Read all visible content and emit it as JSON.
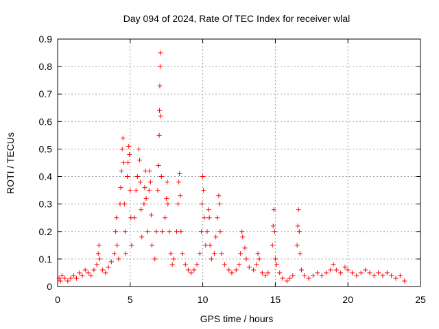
{
  "chart_data": {
    "type": "scatter",
    "title": "Day 094 of 2024, Rate Of TEC Index for receiver wlal",
    "xlabel": "GPS time / hours",
    "ylabel": "ROTI / TECUs",
    "xlim": [
      0,
      25
    ],
    "ylim": [
      0,
      0.9
    ],
    "xticks": [
      0,
      5,
      10,
      15,
      20,
      25
    ],
    "yticks": [
      0,
      0.1,
      0.2,
      0.3,
      0.4,
      0.5,
      0.6,
      0.7,
      0.8,
      0.9
    ],
    "xtick_labels": [
      "0",
      "5",
      "10",
      "15",
      "20",
      "25"
    ],
    "ytick_labels": [
      "0",
      "0.1",
      "0.2",
      "0.3",
      "0.4",
      "0.5",
      "0.6",
      "0.7",
      "0.8",
      "0.9"
    ],
    "grid": true,
    "marker": "+",
    "color": "#ff0000",
    "series": [
      {
        "name": "ROTI",
        "points": [
          [
            0.1,
            0.03
          ],
          [
            0.2,
            0.02
          ],
          [
            0.3,
            0.04
          ],
          [
            0.5,
            0.03
          ],
          [
            0.7,
            0.02
          ],
          [
            0.9,
            0.03
          ],
          [
            1.1,
            0.04
          ],
          [
            1.3,
            0.03
          ],
          [
            1.5,
            0.05
          ],
          [
            1.7,
            0.04
          ],
          [
            1.9,
            0.06
          ],
          [
            2.1,
            0.05
          ],
          [
            2.3,
            0.04
          ],
          [
            2.5,
            0.06
          ],
          [
            2.7,
            0.08
          ],
          [
            2.8,
            0.12
          ],
          [
            2.85,
            0.15
          ],
          [
            2.9,
            0.1
          ],
          [
            3.1,
            0.06
          ],
          [
            3.3,
            0.05
          ],
          [
            3.5,
            0.07
          ],
          [
            3.7,
            0.09
          ],
          [
            3.9,
            0.12
          ],
          [
            4.0,
            0.2
          ],
          [
            4.05,
            0.25
          ],
          [
            4.1,
            0.15
          ],
          [
            4.2,
            0.1
          ],
          [
            4.3,
            0.3
          ],
          [
            4.35,
            0.36
          ],
          [
            4.4,
            0.42
          ],
          [
            4.45,
            0.5
          ],
          [
            4.5,
            0.54
          ],
          [
            4.55,
            0.45
          ],
          [
            4.6,
            0.3
          ],
          [
            4.65,
            0.2
          ],
          [
            4.7,
            0.12
          ],
          [
            4.8,
            0.4
          ],
          [
            4.85,
            0.45
          ],
          [
            4.9,
            0.51
          ],
          [
            4.95,
            0.48
          ],
          [
            5.0,
            0.35
          ],
          [
            5.05,
            0.25
          ],
          [
            5.1,
            0.15
          ],
          [
            5.3,
            0.25
          ],
          [
            5.4,
            0.35
          ],
          [
            5.5,
            0.4
          ],
          [
            5.6,
            0.5
          ],
          [
            5.65,
            0.46
          ],
          [
            5.7,
            0.38
          ],
          [
            5.75,
            0.28
          ],
          [
            5.8,
            0.18
          ],
          [
            5.95,
            0.3
          ],
          [
            6.0,
            0.36
          ],
          [
            6.05,
            0.42
          ],
          [
            6.1,
            0.32
          ],
          [
            6.2,
            0.2
          ],
          [
            6.3,
            0.35
          ],
          [
            6.35,
            0.42
          ],
          [
            6.4,
            0.38
          ],
          [
            6.45,
            0.26
          ],
          [
            6.5,
            0.15
          ],
          [
            6.7,
            0.1
          ],
          [
            6.8,
            0.2
          ],
          [
            6.9,
            0.35
          ],
          [
            6.95,
            0.44
          ],
          [
            7.0,
            0.55
          ],
          [
            7.02,
            0.64
          ],
          [
            7.04,
            0.73
          ],
          [
            7.06,
            0.8
          ],
          [
            7.08,
            0.85
          ],
          [
            7.1,
            0.62
          ],
          [
            7.15,
            0.4
          ],
          [
            7.2,
            0.2
          ],
          [
            7.4,
            0.25
          ],
          [
            7.5,
            0.32
          ],
          [
            7.55,
            0.38
          ],
          [
            7.6,
            0.3
          ],
          [
            7.7,
            0.2
          ],
          [
            7.8,
            0.12
          ],
          [
            7.9,
            0.08
          ],
          [
            8.0,
            0.1
          ],
          [
            8.2,
            0.2
          ],
          [
            8.3,
            0.3
          ],
          [
            8.35,
            0.38
          ],
          [
            8.4,
            0.41
          ],
          [
            8.45,
            0.33
          ],
          [
            8.5,
            0.2
          ],
          [
            8.6,
            0.12
          ],
          [
            8.8,
            0.08
          ],
          [
            9.0,
            0.06
          ],
          [
            9.2,
            0.05
          ],
          [
            9.4,
            0.06
          ],
          [
            9.6,
            0.08
          ],
          [
            9.8,
            0.12
          ],
          [
            9.9,
            0.2
          ],
          [
            9.95,
            0.3
          ],
          [
            10.0,
            0.4
          ],
          [
            10.05,
            0.35
          ],
          [
            10.1,
            0.25
          ],
          [
            10.2,
            0.15
          ],
          [
            10.3,
            0.2
          ],
          [
            10.4,
            0.28
          ],
          [
            10.45,
            0.25
          ],
          [
            10.5,
            0.15
          ],
          [
            10.6,
            0.1
          ],
          [
            10.8,
            0.12
          ],
          [
            10.9,
            0.18
          ],
          [
            11.0,
            0.25
          ],
          [
            11.1,
            0.33
          ],
          [
            11.15,
            0.3
          ],
          [
            11.2,
            0.2
          ],
          [
            11.3,
            0.12
          ],
          [
            11.5,
            0.08
          ],
          [
            11.8,
            0.06
          ],
          [
            12.0,
            0.05
          ],
          [
            12.3,
            0.06
          ],
          [
            12.5,
            0.08
          ],
          [
            12.6,
            0.12
          ],
          [
            12.7,
            0.2
          ],
          [
            12.75,
            0.18
          ],
          [
            12.9,
            0.14
          ],
          [
            13.0,
            0.1
          ],
          [
            13.2,
            0.07
          ],
          [
            13.5,
            0.06
          ],
          [
            13.7,
            0.08
          ],
          [
            13.8,
            0.12
          ],
          [
            13.9,
            0.1
          ],
          [
            14.1,
            0.05
          ],
          [
            14.3,
            0.04
          ],
          [
            14.5,
            0.05
          ],
          [
            14.8,
            0.15
          ],
          [
            14.85,
            0.22
          ],
          [
            14.9,
            0.28
          ],
          [
            14.95,
            0.2
          ],
          [
            15.0,
            0.1
          ],
          [
            15.1,
            0.08
          ],
          [
            15.3,
            0.05
          ],
          [
            15.5,
            0.03
          ],
          [
            15.8,
            0.02
          ],
          [
            16.0,
            0.03
          ],
          [
            16.2,
            0.04
          ],
          [
            16.5,
            0.15
          ],
          [
            16.55,
            0.22
          ],
          [
            16.6,
            0.28
          ],
          [
            16.65,
            0.2
          ],
          [
            16.7,
            0.12
          ],
          [
            16.8,
            0.06
          ],
          [
            17.0,
            0.04
          ],
          [
            17.3,
            0.03
          ],
          [
            17.6,
            0.04
          ],
          [
            17.9,
            0.05
          ],
          [
            18.2,
            0.04
          ],
          [
            18.5,
            0.05
          ],
          [
            18.8,
            0.06
          ],
          [
            19.0,
            0.08
          ],
          [
            19.2,
            0.06
          ],
          [
            19.5,
            0.05
          ],
          [
            19.8,
            0.07
          ],
          [
            20.0,
            0.06
          ],
          [
            20.3,
            0.05
          ],
          [
            20.6,
            0.04
          ],
          [
            20.9,
            0.05
          ],
          [
            21.2,
            0.06
          ],
          [
            21.5,
            0.05
          ],
          [
            21.8,
            0.04
          ],
          [
            22.1,
            0.05
          ],
          [
            22.4,
            0.04
          ],
          [
            22.7,
            0.05
          ],
          [
            23.0,
            0.04
          ],
          [
            23.3,
            0.03
          ],
          [
            23.6,
            0.04
          ],
          [
            23.9,
            0.02
          ]
        ]
      }
    ]
  }
}
